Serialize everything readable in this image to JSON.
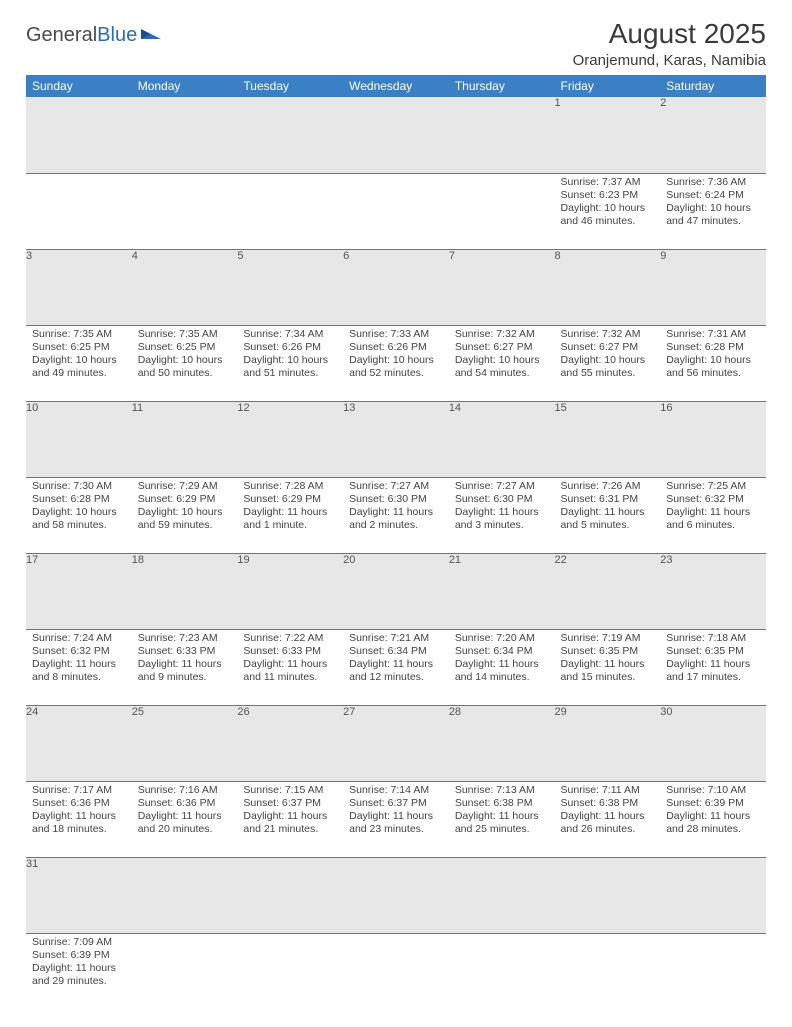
{
  "logo": {
    "brand1": "General",
    "brand2": "Blue"
  },
  "title": "August 2025",
  "location": "Oranjemund, Karas, Namibia",
  "colors": {
    "header_bg": "#3b7fc4",
    "header_text": "#ffffff",
    "daynum_bg": "#e7e7e7",
    "row_border": "#3b7fc4",
    "text": "#333333"
  },
  "weekdays": [
    "Sunday",
    "Monday",
    "Tuesday",
    "Wednesday",
    "Thursday",
    "Friday",
    "Saturday"
  ],
  "weeks": [
    [
      null,
      null,
      null,
      null,
      null,
      {
        "n": "1",
        "rise": "7:37 AM",
        "set": "6:23 PM",
        "day": "10 hours and 46 minutes."
      },
      {
        "n": "2",
        "rise": "7:36 AM",
        "set": "6:24 PM",
        "day": "10 hours and 47 minutes."
      }
    ],
    [
      {
        "n": "3",
        "rise": "7:35 AM",
        "set": "6:25 PM",
        "day": "10 hours and 49 minutes."
      },
      {
        "n": "4",
        "rise": "7:35 AM",
        "set": "6:25 PM",
        "day": "10 hours and 50 minutes."
      },
      {
        "n": "5",
        "rise": "7:34 AM",
        "set": "6:26 PM",
        "day": "10 hours and 51 minutes."
      },
      {
        "n": "6",
        "rise": "7:33 AM",
        "set": "6:26 PM",
        "day": "10 hours and 52 minutes."
      },
      {
        "n": "7",
        "rise": "7:32 AM",
        "set": "6:27 PM",
        "day": "10 hours and 54 minutes."
      },
      {
        "n": "8",
        "rise": "7:32 AM",
        "set": "6:27 PM",
        "day": "10 hours and 55 minutes."
      },
      {
        "n": "9",
        "rise": "7:31 AM",
        "set": "6:28 PM",
        "day": "10 hours and 56 minutes."
      }
    ],
    [
      {
        "n": "10",
        "rise": "7:30 AM",
        "set": "6:28 PM",
        "day": "10 hours and 58 minutes."
      },
      {
        "n": "11",
        "rise": "7:29 AM",
        "set": "6:29 PM",
        "day": "10 hours and 59 minutes."
      },
      {
        "n": "12",
        "rise": "7:28 AM",
        "set": "6:29 PM",
        "day": "11 hours and 1 minute."
      },
      {
        "n": "13",
        "rise": "7:27 AM",
        "set": "6:30 PM",
        "day": "11 hours and 2 minutes."
      },
      {
        "n": "14",
        "rise": "7:27 AM",
        "set": "6:30 PM",
        "day": "11 hours and 3 minutes."
      },
      {
        "n": "15",
        "rise": "7:26 AM",
        "set": "6:31 PM",
        "day": "11 hours and 5 minutes."
      },
      {
        "n": "16",
        "rise": "7:25 AM",
        "set": "6:32 PM",
        "day": "11 hours and 6 minutes."
      }
    ],
    [
      {
        "n": "17",
        "rise": "7:24 AM",
        "set": "6:32 PM",
        "day": "11 hours and 8 minutes."
      },
      {
        "n": "18",
        "rise": "7:23 AM",
        "set": "6:33 PM",
        "day": "11 hours and 9 minutes."
      },
      {
        "n": "19",
        "rise": "7:22 AM",
        "set": "6:33 PM",
        "day": "11 hours and 11 minutes."
      },
      {
        "n": "20",
        "rise": "7:21 AM",
        "set": "6:34 PM",
        "day": "11 hours and 12 minutes."
      },
      {
        "n": "21",
        "rise": "7:20 AM",
        "set": "6:34 PM",
        "day": "11 hours and 14 minutes."
      },
      {
        "n": "22",
        "rise": "7:19 AM",
        "set": "6:35 PM",
        "day": "11 hours and 15 minutes."
      },
      {
        "n": "23",
        "rise": "7:18 AM",
        "set": "6:35 PM",
        "day": "11 hours and 17 minutes."
      }
    ],
    [
      {
        "n": "24",
        "rise": "7:17 AM",
        "set": "6:36 PM",
        "day": "11 hours and 18 minutes."
      },
      {
        "n": "25",
        "rise": "7:16 AM",
        "set": "6:36 PM",
        "day": "11 hours and 20 minutes."
      },
      {
        "n": "26",
        "rise": "7:15 AM",
        "set": "6:37 PM",
        "day": "11 hours and 21 minutes."
      },
      {
        "n": "27",
        "rise": "7:14 AM",
        "set": "6:37 PM",
        "day": "11 hours and 23 minutes."
      },
      {
        "n": "28",
        "rise": "7:13 AM",
        "set": "6:38 PM",
        "day": "11 hours and 25 minutes."
      },
      {
        "n": "29",
        "rise": "7:11 AM",
        "set": "6:38 PM",
        "day": "11 hours and 26 minutes."
      },
      {
        "n": "30",
        "rise": "7:10 AM",
        "set": "6:39 PM",
        "day": "11 hours and 28 minutes."
      }
    ],
    [
      {
        "n": "31",
        "rise": "7:09 AM",
        "set": "6:39 PM",
        "day": "11 hours and 29 minutes."
      },
      null,
      null,
      null,
      null,
      null,
      null
    ]
  ],
  "labels": {
    "sunrise": "Sunrise: ",
    "sunset": "Sunset: ",
    "daylight": "Daylight: "
  }
}
